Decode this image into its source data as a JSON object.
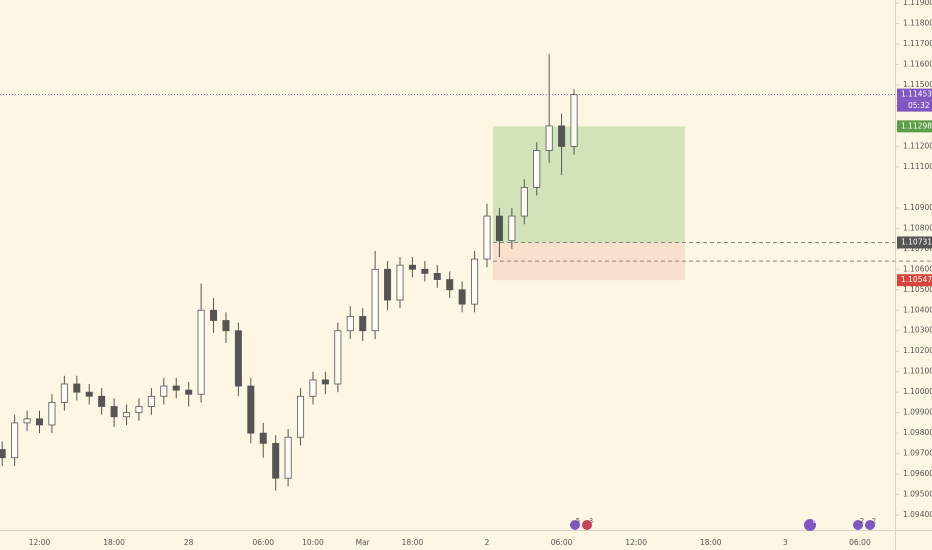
{
  "chart_data": {
    "type": "candlestick",
    "categories": [
      null,
      null,
      null,
      "12:00",
      null,
      null,
      null,
      null,
      null,
      "18:00",
      null,
      null,
      null,
      null,
      null,
      "28",
      null,
      null,
      null,
      null,
      null,
      "06:00",
      null,
      null,
      null,
      "10:00",
      null,
      null,
      null,
      "Mar",
      null,
      null,
      null,
      "18:00",
      null,
      null,
      null,
      null,
      null,
      "2",
      null,
      null,
      null,
      null,
      null,
      "06:00",
      null,
      null,
      null,
      null,
      null,
      "12:00",
      null,
      null,
      null,
      null,
      null,
      "18:00",
      null,
      null,
      null,
      null,
      null,
      "3",
      null,
      null,
      null,
      null,
      null,
      "06:00",
      null,
      null
    ],
    "open": [
      1.0972,
      1.0968,
      1.0985,
      1.0987,
      1.0984,
      1.0995,
      1.1004,
      1.1,
      1.0998,
      1.0993,
      1.0988,
      1.099,
      1.0993,
      1.0998,
      1.1003,
      1.1001,
      1.0999,
      1.104,
      1.1035,
      1.103,
      1.1003,
      1.098,
      1.0975,
      1.0958,
      1.0978,
      1.0998,
      1.1006,
      1.1004,
      1.103,
      1.1037,
      1.103,
      1.106,
      1.1045,
      1.1062,
      1.106,
      1.1058,
      1.1055,
      1.105,
      1.1043,
      1.1065,
      1.1086,
      1.1074,
      1.1086,
      1.11,
      1.1118,
      1.113,
      1.112,
      null,
      null,
      null,
      null,
      null,
      null,
      null,
      null,
      null,
      null,
      null,
      null,
      null,
      null,
      null,
      null,
      null,
      null,
      null,
      null,
      null,
      null,
      null,
      null,
      null
    ],
    "high": [
      1.0976,
      1.0989,
      1.0991,
      1.0991,
      1.0999,
      1.1008,
      1.1008,
      1.1004,
      1.1002,
      1.0997,
      1.0994,
      1.0997,
      1.1002,
      1.1007,
      1.1007,
      1.1005,
      1.1053,
      1.1046,
      1.1039,
      1.1034,
      1.1007,
      1.0985,
      1.0979,
      1.0982,
      1.1002,
      1.101,
      1.101,
      1.1034,
      1.1042,
      1.1041,
      1.1069,
      1.1064,
      1.1066,
      1.1066,
      1.1064,
      1.1062,
      1.1059,
      1.1054,
      1.1069,
      1.1092,
      1.109,
      1.109,
      1.1104,
      1.1122,
      1.1165,
      1.1136,
      1.1148,
      null,
      null,
      null,
      null,
      null,
      null,
      null,
      null,
      null,
      null,
      null,
      null,
      null,
      null,
      null,
      null,
      null,
      null,
      null,
      null,
      null,
      null,
      null,
      null,
      null
    ],
    "low": [
      1.0964,
      1.0964,
      1.0981,
      1.098,
      1.098,
      1.0991,
      1.0996,
      1.0994,
      1.0989,
      1.0983,
      1.0984,
      1.0986,
      1.0989,
      1.0994,
      1.0997,
      1.0993,
      1.0995,
      1.1029,
      1.1024,
      1.0998,
      1.0975,
      1.0968,
      1.0952,
      1.0954,
      1.0974,
      1.0994,
      1.0999,
      1.1,
      1.1026,
      1.1025,
      1.1026,
      1.104,
      1.1041,
      1.1056,
      1.1054,
      1.1051,
      1.1046,
      1.1039,
      1.1039,
      1.1061,
      1.1066,
      1.107,
      1.1082,
      1.1096,
      1.1112,
      1.1106,
      1.1116,
      null,
      null,
      null,
      null,
      null,
      null,
      null,
      null,
      null,
      null,
      null,
      null,
      null,
      null,
      null,
      null,
      null,
      null,
      null,
      null,
      null,
      null,
      null,
      null,
      null
    ],
    "close": [
      1.0968,
      1.0985,
      1.0987,
      1.0984,
      1.0995,
      1.1004,
      1.1,
      1.0998,
      1.0993,
      1.0988,
      1.099,
      1.0993,
      1.0998,
      1.1003,
      1.1001,
      1.0999,
      1.104,
      1.1035,
      1.103,
      1.1003,
      1.098,
      1.0975,
      1.0958,
      1.0978,
      1.0998,
      1.1006,
      1.1004,
      1.103,
      1.1037,
      1.103,
      1.106,
      1.1045,
      1.1062,
      1.106,
      1.1058,
      1.1055,
      1.105,
      1.1043,
      1.1065,
      1.1086,
      1.1074,
      1.1086,
      1.11,
      1.1118,
      1.113,
      1.112,
      1.11453,
      null,
      null,
      null,
      null,
      null,
      null,
      null,
      null,
      null,
      null,
      null,
      null,
      null,
      null,
      null,
      null,
      null,
      null,
      null,
      null,
      null,
      null,
      null,
      null,
      null
    ],
    "up_color": "#fffdf5",
    "down_color": "#555555",
    "wick_color": "#555555",
    "ylim": [
      1.09327,
      1.11915
    ],
    "yticks": [
      {
        "value": 1.119,
        "label": "1.11900"
      },
      {
        "value": 1.118,
        "label": "1.11800"
      },
      {
        "value": 1.117,
        "label": "1.11700"
      },
      {
        "value": 1.116,
        "label": "1.11600"
      },
      {
        "value": 1.115,
        "label": "1.11500"
      },
      {
        "value": 1.114,
        "label": "1.11400"
      },
      {
        "value": 1.113,
        "label": "1.11300"
      },
      {
        "value": 1.112,
        "label": "1.11200"
      },
      {
        "value": 1.111,
        "label": "1.11100"
      },
      {
        "value": 1.109,
        "label": "1.10900"
      },
      {
        "value": 1.108,
        "label": "1.10800"
      },
      {
        "value": 1.107,
        "label": "1.10700"
      },
      {
        "value": 1.106,
        "label": "1.10600"
      },
      {
        "value": 1.105,
        "label": "1.10500"
      },
      {
        "value": 1.104,
        "label": "1.10400"
      },
      {
        "value": 1.103,
        "label": "1.10300"
      },
      {
        "value": 1.102,
        "label": "1.10200"
      },
      {
        "value": 1.101,
        "label": "1.10100"
      },
      {
        "value": 1.1,
        "label": "1.10000"
      },
      {
        "value": 1.099,
        "label": "1.09900"
      },
      {
        "value": 1.098,
        "label": "1.09800"
      },
      {
        "value": 1.097,
        "label": "1.09700"
      },
      {
        "value": 1.096,
        "label": "1.09600"
      },
      {
        "value": 1.095,
        "label": "1.09500"
      },
      {
        "value": 1.094,
        "label": "1.09400"
      }
    ],
    "current_price": 1.11453,
    "current_color": "#7e57c2",
    "countdown": "05:32",
    "position": {
      "target": 1.11298,
      "entry": 1.10731,
      "stop": 1.10547,
      "target_color": "#5b9e47",
      "entry_color": "#555555",
      "stop_color": "#d9453d"
    },
    "dashed_level": 1.1064
  },
  "events": [
    "5",
    "3",
    "8",
    "2",
    "2"
  ]
}
